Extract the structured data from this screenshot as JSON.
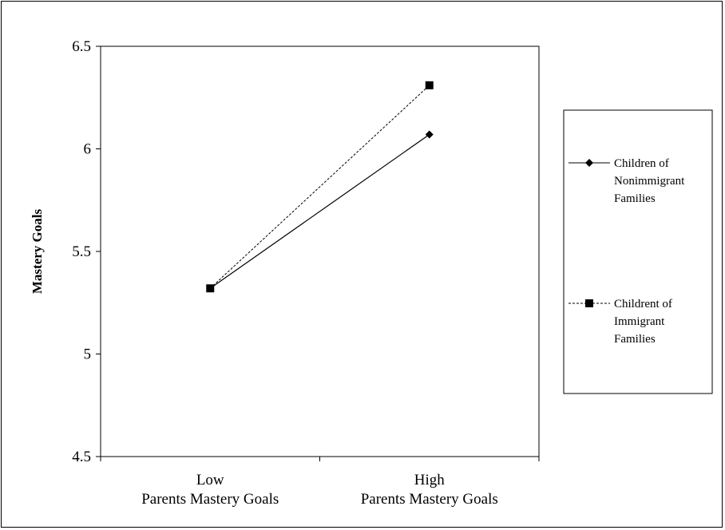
{
  "chart_data": {
    "type": "line",
    "title": "",
    "ylabel": "Mastery Goals",
    "xlabel": "",
    "ylim": [
      4.5,
      6.5
    ],
    "yticks": [
      "4.5",
      "5",
      "5.5",
      "6",
      "6.5"
    ],
    "categories": [
      [
        "Low",
        "Parents Mastery Goals"
      ],
      [
        "High",
        "Parents Mastery Goals"
      ]
    ],
    "series": [
      {
        "name": [
          "Children of",
          "Nonimmigrant",
          "Families"
        ],
        "values": [
          5.32,
          6.07
        ],
        "marker": "diamond",
        "line_style": "solid"
      },
      {
        "name": [
          "Childrent of",
          "Immigrant",
          "Families"
        ],
        "values": [
          5.32,
          6.31
        ],
        "marker": "square",
        "line_style": "dashed"
      }
    ],
    "grid": false,
    "legend_position": "right"
  }
}
